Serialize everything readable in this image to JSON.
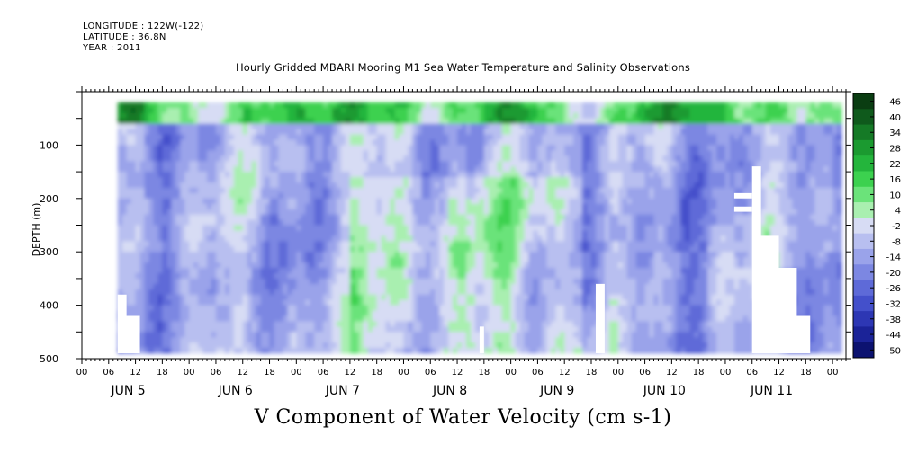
{
  "header": {
    "longitude": "LONGITUDE : 122W(-122)",
    "latitude": "LATITUDE : 36.8N",
    "year": "YEAR : 2011"
  },
  "chart_data": {
    "type": "heatmap",
    "title": "Hourly Gridded MBARI Mooring M1 Sea Water Temperature and Salinity Observations",
    "xlabel": "V Component of Water Velocity (cm s-1)",
    "ylabel": "DEPTH (m)",
    "x_hour_ticks": [
      "00",
      "06",
      "12",
      "18",
      "00",
      "06",
      "12",
      "18",
      "00",
      "06",
      "12",
      "18",
      "00",
      "06",
      "12",
      "18",
      "00",
      "06",
      "12",
      "18",
      "00",
      "06",
      "12",
      "18",
      "00",
      "06",
      "12",
      "18",
      "00"
    ],
    "x_day_labels": [
      "JUN  5",
      "JUN  6",
      "JUN  7",
      "JUN  8",
      "JUN  9",
      "JUN 10",
      "JUN 11"
    ],
    "xlim_hours": [
      0,
      171
    ],
    "data_hours": [
      8,
      170
    ],
    "y_ticks": [
      100,
      200,
      300,
      400,
      500
    ],
    "ylim": [
      500,
      0
    ],
    "data_depth": [
      20,
      490
    ],
    "colorbar": {
      "labels": [
        "46",
        "40",
        "34",
        "28",
        "22",
        "16",
        "10",
        "4",
        "-2",
        "-8",
        "-14",
        "-20",
        "-26",
        "-32",
        "-38",
        "-44",
        "-50"
      ],
      "colors": [
        "#0a3d12",
        "#0f5a1c",
        "#157a26",
        "#1b9a30",
        "#24b53c",
        "#3cd14f",
        "#6be37a",
        "#a9efb0",
        "#d7dcf4",
        "#b8bff0",
        "#9aa3ea",
        "#7c87e2",
        "#5e6ad8",
        "#4450cb",
        "#2d37b4",
        "#1b2398",
        "#0c1270"
      ]
    },
    "pattern_summary": [
      {
        "hours": [
          8,
          170
        ],
        "depth": [
          20,
          60
        ],
        "v": "positive (green, up to ~40)"
      },
      {
        "hours": [
          8,
          60
        ],
        "depth": [
          60,
          500
        ],
        "v": "mostly negative (blue, about -10 to -20)"
      },
      {
        "hours": [
          60,
          112
        ],
        "depth": [
          150,
          480
        ],
        "v": "mixed, bands of green (~+10)"
      },
      {
        "hours": [
          112,
          140
        ],
        "depth": [
          60,
          500
        ],
        "v": "mostly negative (blue, about -15)"
      },
      {
        "hours": [
          140,
          170
        ],
        "depth": [
          60,
          500
        ],
        "v": "negative with gaps (white, missing data)"
      }
    ]
  }
}
